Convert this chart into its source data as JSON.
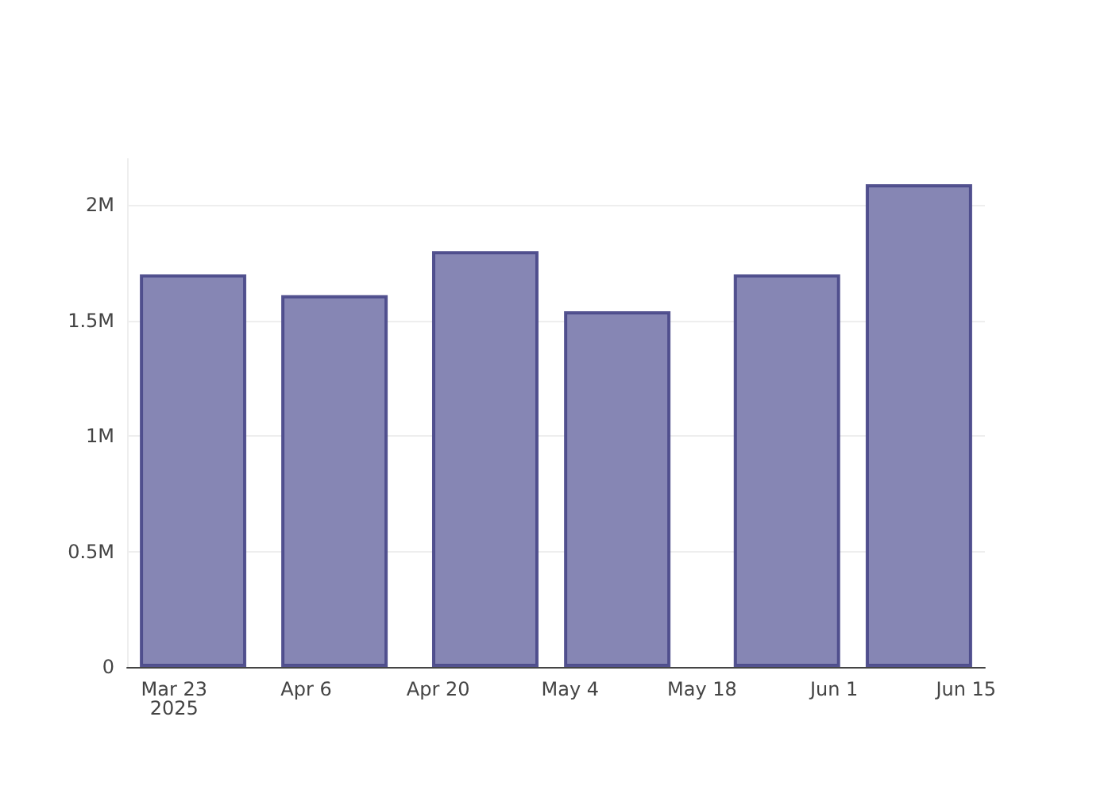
{
  "chart_data": {
    "type": "bar",
    "x": [
      "2025-03-25",
      "2025-04-09",
      "2025-04-25",
      "2025-05-09",
      "2025-05-27",
      "2025-06-10"
    ],
    "values": [
      1700000,
      1610000,
      1800000,
      1540000,
      1700000,
      2090000
    ],
    "color": "#7f7fb0",
    "xlim": [
      "2025-03-18",
      "2025-06-17"
    ],
    "xticks": [
      {
        "value": "2025-03-23",
        "label": "Mar 23\n2025"
      },
      {
        "value": "2025-04-06",
        "label": "Apr 6"
      },
      {
        "value": "2025-04-20",
        "label": "Apr 20"
      },
      {
        "value": "2025-05-04",
        "label": "May 4"
      },
      {
        "value": "2025-05-18",
        "label": "May 18"
      },
      {
        "value": "2025-06-01",
        "label": "Jun 1"
      },
      {
        "value": "2025-06-15",
        "label": "Jun 15"
      }
    ],
    "ylim": [
      0,
      2200000
    ],
    "yticks": [
      {
        "value": 0,
        "label": "0"
      },
      {
        "value": 500000,
        "label": "0.5M"
      },
      {
        "value": 1000000,
        "label": "1M"
      },
      {
        "value": 1500000,
        "label": "1.5M"
      },
      {
        "value": 2000000,
        "label": "2M"
      }
    ],
    "grid": "y"
  }
}
